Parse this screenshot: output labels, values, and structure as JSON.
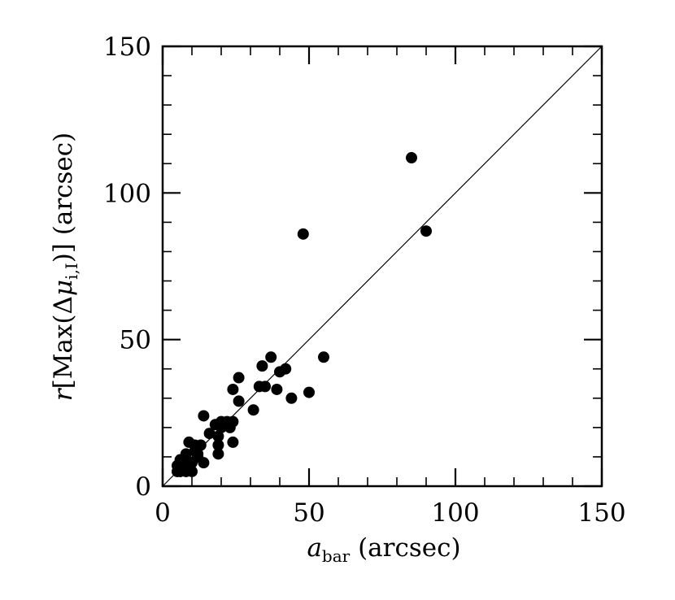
{
  "chart_data": {
    "type": "scatter",
    "xlabel": {
      "symbol": "a",
      "subscript": "bar",
      "unit": "(arcsec)"
    },
    "ylabel": {
      "symbol": "r",
      "text_open": "[Max(Δ",
      "mu": "μ",
      "subscript": "i,I",
      "text_close": ")]",
      "unit": "(arcsec)"
    },
    "xlim": [
      0,
      150
    ],
    "ylim": [
      0,
      150
    ],
    "x_ticks": [
      "0",
      "50",
      "100",
      "150"
    ],
    "y_ticks": [
      "0",
      "50",
      "100",
      "150"
    ],
    "x_tick_values": [
      0,
      50,
      100,
      150
    ],
    "y_tick_values": [
      0,
      50,
      100,
      150
    ],
    "minor_tick_step": 10,
    "grid": false,
    "reference_line": {
      "type": "one-to-one",
      "from": [
        0,
        0
      ],
      "to": [
        150,
        150
      ]
    },
    "marker_color": "#000000",
    "points": [
      [
        85,
        112
      ],
      [
        48,
        86
      ],
      [
        90,
        87
      ],
      [
        55,
        44
      ],
      [
        37,
        44
      ],
      [
        34,
        41
      ],
      [
        42,
        40
      ],
      [
        40,
        39
      ],
      [
        39,
        33
      ],
      [
        33,
        34
      ],
      [
        35,
        34
      ],
      [
        26,
        37
      ],
      [
        24,
        33
      ],
      [
        26,
        29
      ],
      [
        44,
        30
      ],
      [
        50,
        32
      ],
      [
        31,
        26
      ],
      [
        14,
        24
      ],
      [
        24,
        22
      ],
      [
        22,
        22
      ],
      [
        20,
        22
      ],
      [
        18,
        21
      ],
      [
        23,
        20
      ],
      [
        20,
        20
      ],
      [
        16,
        18
      ],
      [
        19,
        17
      ],
      [
        24,
        15
      ],
      [
        19,
        14
      ],
      [
        9,
        15
      ],
      [
        11,
        14
      ],
      [
        13,
        14
      ],
      [
        11,
        12
      ],
      [
        12,
        11
      ],
      [
        19,
        11
      ],
      [
        8,
        11
      ],
      [
        6,
        9
      ],
      [
        7,
        8
      ],
      [
        8,
        8
      ],
      [
        10,
        8
      ],
      [
        14,
        8
      ],
      [
        5,
        7
      ],
      [
        7,
        6
      ],
      [
        9,
        6
      ],
      [
        5,
        5
      ],
      [
        6,
        5
      ],
      [
        8,
        5
      ],
      [
        10,
        5
      ],
      [
        12,
        10
      ]
    ]
  }
}
